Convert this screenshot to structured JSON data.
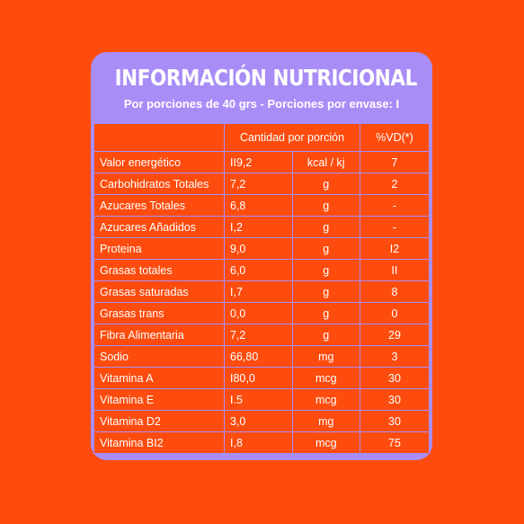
{
  "title": "INFORMACIÓN NUTRICIONAL",
  "subtitle": "Por porciones de 40 grs - Porciones por envase: I",
  "headers": {
    "blank": "",
    "cantidad": "Cantidad por porción",
    "vd": "%VD(*)"
  },
  "rows": [
    {
      "name": "Valor energético",
      "value": "II9,2",
      "unit": "kcal / kj",
      "vd": "7"
    },
    {
      "name": "Carbohidratos Totales",
      "value": "7,2",
      "unit": "g",
      "vd": "2"
    },
    {
      "name": "Azucares Totales",
      "value": "6,8",
      "unit": "g",
      "vd": "-"
    },
    {
      "name": "Azucares Añadidos",
      "value": "I,2",
      "unit": "g",
      "vd": "-"
    },
    {
      "name": "Proteina",
      "value": "9,0",
      "unit": "g",
      "vd": "I2"
    },
    {
      "name": "Grasas totales",
      "value": "6,0",
      "unit": "g",
      "vd": "II"
    },
    {
      "name": "Grasas saturadas",
      "value": "I,7",
      "unit": "g",
      "vd": "8"
    },
    {
      "name": "Grasas trans",
      "value": "0,0",
      "unit": "g",
      "vd": "0"
    },
    {
      "name": "Fibra Alimentaria",
      "value": "7,2",
      "unit": "g",
      "vd": "29"
    },
    {
      "name": "Sodio",
      "value": "66,80",
      "unit": "mg",
      "vd": "3"
    },
    {
      "name": "Vitamina A",
      "value": "I80,0",
      "unit": "mcg",
      "vd": "30"
    },
    {
      "name": "Vitamina E",
      "value": "I.5",
      "unit": "mcg",
      "vd": "30"
    },
    {
      "name": "Vitamina D2",
      "value": "3,0",
      "unit": "mg",
      "vd": "30"
    },
    {
      "name": "Vitamina BI2",
      "value": "I,8",
      "unit": "mcg",
      "vd": "75"
    }
  ],
  "colors": {
    "background": "#fd4c0e",
    "card": "#a98df7",
    "text": "#ffffff"
  }
}
